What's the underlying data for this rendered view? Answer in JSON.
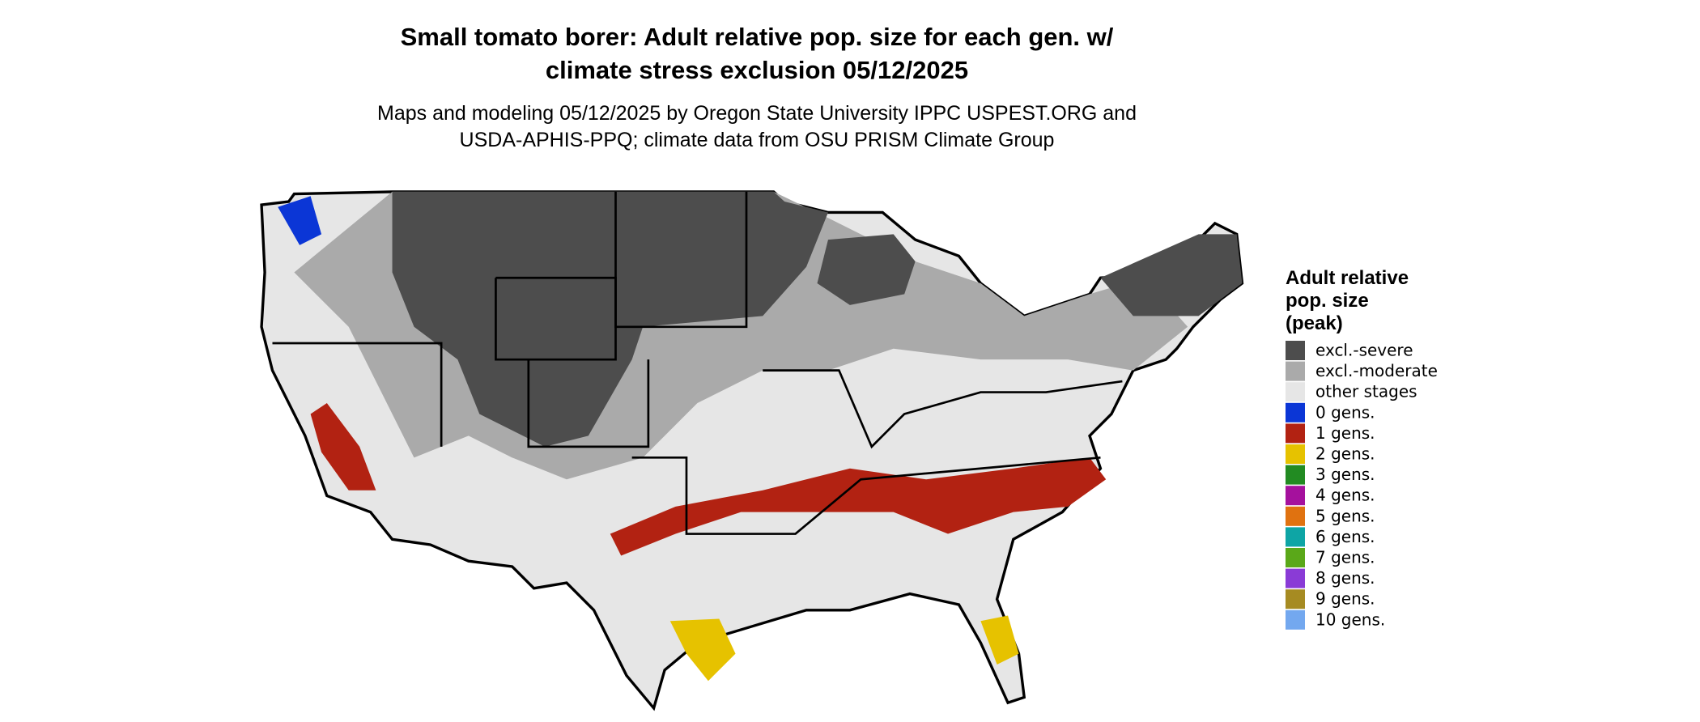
{
  "header": {
    "title": [
      "Small tomato borer: Adult relative pop. size for each gen. w/",
      "climate stress exclusion 05/12/2025"
    ],
    "subtitle": [
      "Maps and modeling 05/12/2025 by Oregon State University IPPC USPEST.ORG and",
      "USDA-APHIS-PPQ; climate data from OSU PRISM Climate Group"
    ]
  },
  "legend": {
    "title": [
      "Adult relative",
      "pop. size",
      "(peak)"
    ],
    "items": [
      {
        "label": "excl.-severe",
        "color": "#4d4d4d"
      },
      {
        "label": "excl.-moderate",
        "color": "#aaaaaa"
      },
      {
        "label": "other stages",
        "color": "#e6e6e6"
      },
      {
        "label": "0 gens.",
        "color": "#0b36d6"
      },
      {
        "label": "1 gens.",
        "color": "#b22212"
      },
      {
        "label": "2 gens.",
        "color": "#e6c200"
      },
      {
        "label": "3 gens.",
        "color": "#228b22"
      },
      {
        "label": "4 gens.",
        "color": "#a5119d"
      },
      {
        "label": "5 gens.",
        "color": "#e07210"
      },
      {
        "label": "6 gens.",
        "color": "#0ea5a5"
      },
      {
        "label": "7 gens.",
        "color": "#5aa819"
      },
      {
        "label": "8 gens.",
        "color": "#8a3bd6"
      },
      {
        "label": "9 gens.",
        "color": "#a68b22"
      },
      {
        "label": "10 gens.",
        "color": "#73a8ef"
      }
    ]
  }
}
